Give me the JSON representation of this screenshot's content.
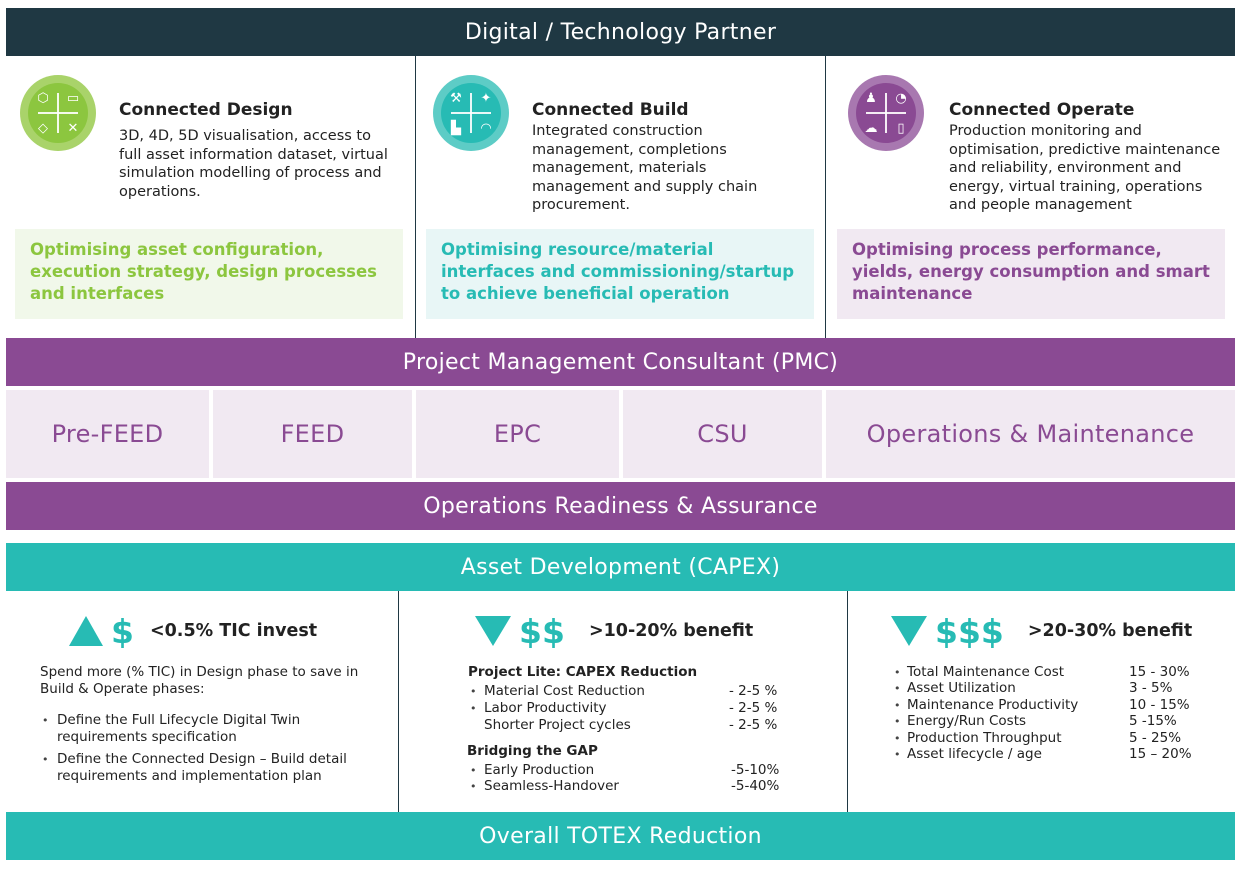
{
  "top_band": "Digital / Technology Partner",
  "connected": [
    {
      "title": "Connected Design",
      "description": "3D, 4D, 5D visualisation, access to full asset information dataset, virtual simulation modelling of process and operations.",
      "optimising": "Optimising asset configuration, execution strategy, design processes and interfaces",
      "icon": "design-quad-icon",
      "color": "#8cc63f"
    },
    {
      "title": "Connected Build",
      "description": "Integrated construction management, completions management, materials management and supply chain procurement.",
      "optimising": "Optimising resource/material interfaces and commissioning/startup to achieve beneficial operation",
      "icon": "build-quad-icon",
      "color": "#27bbb4"
    },
    {
      "title": "Connected Operate",
      "description": "Production monitoring and optimisation, predictive maintenance and reliability, environment and energy, virtual training, operations and people management",
      "optimising": "Optimising process performance, yields, energy consumption and smart maintenance",
      "icon": "operate-quad-icon",
      "color": "#8a4a93"
    }
  ],
  "pmc_band": "Project Management Consultant (PMC)",
  "phases": [
    "Pre-FEED",
    "FEED",
    "EPC",
    "CSU",
    "Operations & Maintenance"
  ],
  "ora_band": "Operations Readiness & Assurance",
  "capex_band": "Asset Development (CAPEX)",
  "col1": {
    "dollars": "$",
    "headline": "<0.5% TIC invest",
    "intro": "Spend more (% TIC) in Design phase to save in Build & Operate phases:",
    "bullets": [
      "Define the Full Lifecycle Digital Twin requirements specification",
      "Define the Connected Design – Build detail requirements and implementation plan"
    ]
  },
  "col2": {
    "dollars": "$$",
    "headline": ">10-20% benefit",
    "section1_title": "Project Lite: CAPEX Reduction",
    "section1_rows": [
      {
        "label": "Material Cost Reduction",
        "value": "- 2-5 %"
      },
      {
        "label": "Labor Productivity",
        "value": "- 2-5 %"
      },
      {
        "label": "Shorter Project cycles",
        "value": "- 2-5 %"
      }
    ],
    "section2_title": "Bridging the GAP",
    "section2_rows": [
      {
        "label": "Early Production",
        "value": "-5-10%"
      },
      {
        "label": "Seamless-Handover",
        "value": "-5-40%"
      }
    ]
  },
  "col3": {
    "dollars": "$$$",
    "headline": ">20-30% benefit",
    "rows": [
      {
        "label": "Total Maintenance Cost",
        "value": "15 - 30%"
      },
      {
        "label": "Asset Utilization",
        "value": "3 - 5%"
      },
      {
        "label": "Maintenance Productivity",
        "value": "10 - 15%"
      },
      {
        "label": "Energy/Run Costs",
        "value": "5 -15%"
      },
      {
        "label": "Production Throughput",
        "value": "5 - 25%"
      },
      {
        "label": "Asset lifecycle / age",
        "value": "15 – 20%"
      }
    ]
  },
  "totex_band": "Overall TOTEX Reduction",
  "colors": {
    "dark": "#1f3843",
    "purple": "#8a4a93",
    "teal": "#27bbb4",
    "green": "#8cc63f",
    "light_green": "#f1f8ea",
    "light_teal": "#e8f6f6",
    "light_purple": "#f1e9f2"
  }
}
